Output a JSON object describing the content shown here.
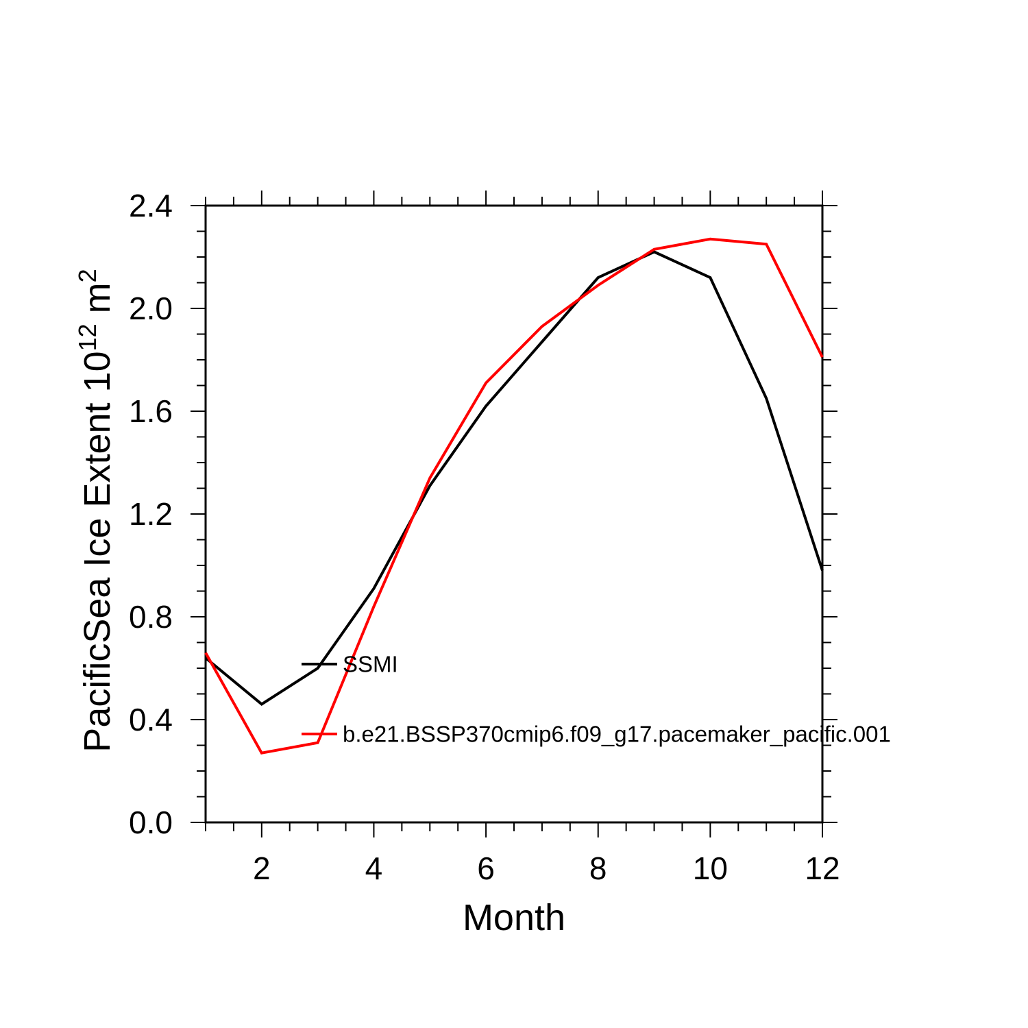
{
  "chart_data": {
    "type": "line",
    "title": "",
    "xlabel": "Month",
    "ylabel": "PacificSea Ice Extent 10^12 m^2",
    "ylabel_parts": [
      {
        "text": "PacificSea Ice Extent 10",
        "super": false
      },
      {
        "text": "12",
        "super": true
      },
      {
        "text": " m",
        "super": false
      },
      {
        "text": "2",
        "super": true
      }
    ],
    "x": [
      1,
      2,
      3,
      4,
      5,
      6,
      7,
      8,
      9,
      10,
      11,
      12
    ],
    "series": [
      {
        "name": "SSMI",
        "color": "#000000",
        "values": [
          0.64,
          0.46,
          0.6,
          0.91,
          1.31,
          1.62,
          1.87,
          2.12,
          2.22,
          2.12,
          1.65,
          0.98
        ]
      },
      {
        "name": "b.e21.BSSP370cmip6.f09_g17.pacemaker_pacific.001",
        "color": "#ff0000",
        "values": [
          0.66,
          0.27,
          0.31,
          0.84,
          1.34,
          1.71,
          1.93,
          2.09,
          2.23,
          2.27,
          2.25,
          1.81
        ]
      }
    ],
    "xlim": [
      1,
      12
    ],
    "ylim": [
      0.0,
      2.4
    ],
    "x_major_ticks": [
      2,
      4,
      6,
      8,
      10,
      12
    ],
    "x_tick_labels": [
      "2",
      "4",
      "6",
      "8",
      "10",
      "12"
    ],
    "x_minor_step": 0.5,
    "y_major_ticks": [
      0.0,
      0.4,
      0.8,
      1.2,
      1.6,
      2.0,
      2.4
    ],
    "y_tick_labels": [
      "0.0",
      "0.4",
      "0.8",
      "1.2",
      "1.6",
      "2.0",
      "2.4"
    ],
    "y_minor_step": 0.1,
    "grid": false,
    "legend_position": "inside-lower-left"
  },
  "legend": {
    "entries": [
      {
        "label": "SSMI",
        "color": "#000000"
      },
      {
        "label": "b.e21.BSSP370cmip6.f09_g17.pacemaker_pacific.001",
        "color": "#ff0000"
      }
    ]
  },
  "colors": {
    "background": "#ffffff",
    "axis": "#000000",
    "series_ssmi": "#000000",
    "series_model": "#ff0000"
  }
}
